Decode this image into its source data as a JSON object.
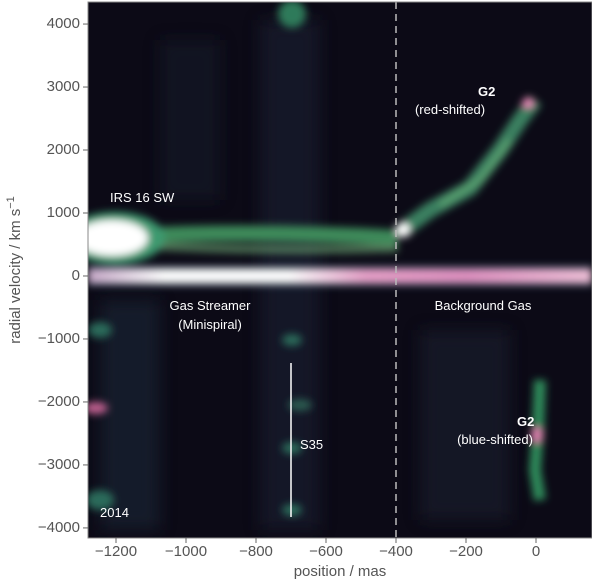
{
  "chart_data": {
    "type": "heatmap",
    "xlabel": "position / mas",
    "ylabel": {
      "text": "radial velocity / km s",
      "superscript": "−1"
    },
    "xlim": [
      -1280,
      160
    ],
    "ylim": [
      -4160,
      4350
    ],
    "xticks": [
      {
        "value": -1200,
        "label": "−1200"
      },
      {
        "value": -1000,
        "label": "−1000"
      },
      {
        "value": -800,
        "label": "−800"
      },
      {
        "value": -600,
        "label": "−600"
      },
      {
        "value": -400,
        "label": "−400"
      },
      {
        "value": -200,
        "label": "−200"
      },
      0
    ],
    "yticks": [
      {
        "value": -4000,
        "label": "−4000"
      },
      {
        "value": -3000,
        "label": "−3000"
      },
      {
        "value": -2000,
        "label": "−2000"
      },
      {
        "value": -1000,
        "label": "−1000"
      },
      0,
      1000,
      2000,
      3000,
      4000
    ],
    "annotations": [
      "IRS 16 SW",
      "Gas Streamer",
      "(Minispiral)",
      "Background Gas",
      "G2",
      "(red-shifted)",
      "G2",
      "(blue-shifted)",
      "S35",
      "2014"
    ]
  }
}
